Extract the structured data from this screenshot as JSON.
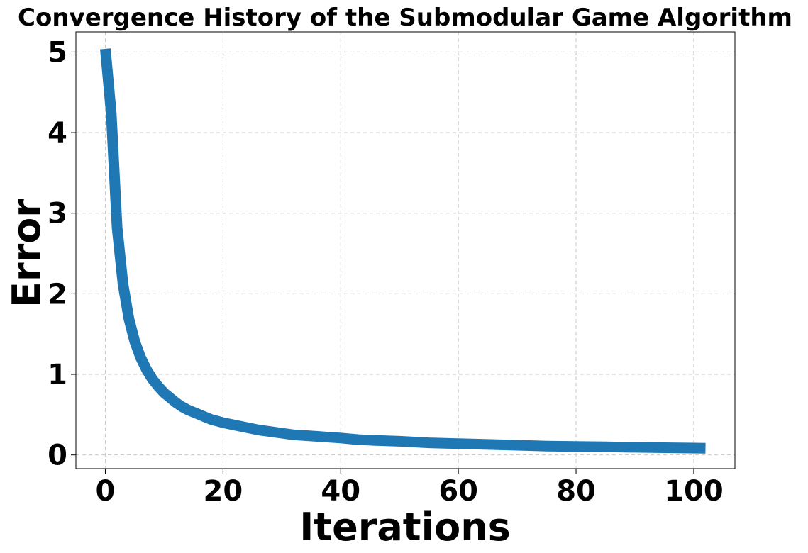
{
  "chart_data": {
    "type": "line",
    "title": "Convergence History of the Submodular Game Algorithm",
    "xlabel": "Iterations",
    "ylabel": "Error",
    "xlim": [
      -5,
      107
    ],
    "ylim": [
      -0.17,
      5.25
    ],
    "xticks": [
      0,
      20,
      40,
      60,
      80,
      100
    ],
    "xtick_labels": [
      "0",
      "20",
      "40",
      "60",
      "80",
      "100"
    ],
    "yticks": [
      0,
      1,
      2,
      3,
      4,
      5
    ],
    "ytick_labels": [
      "0",
      "1",
      "2",
      "3",
      "4",
      "5"
    ],
    "grid": true,
    "series": [
      {
        "color": "#1f77b4",
        "x": [
          0,
          1,
          2,
          3,
          4,
          5,
          6,
          7,
          8,
          9,
          10,
          11,
          12,
          13,
          14,
          15,
          16,
          17,
          18,
          19,
          20,
          22,
          24,
          26,
          28,
          30,
          32,
          34,
          36,
          38,
          40,
          43,
          46,
          50,
          55,
          60,
          65,
          70,
          75,
          80,
          85,
          90,
          95,
          100,
          102
        ],
        "y": [
          5.04,
          4.24,
          2.82,
          2.12,
          1.69,
          1.41,
          1.21,
          1.06,
          0.94,
          0.85,
          0.77,
          0.71,
          0.65,
          0.6,
          0.56,
          0.53,
          0.5,
          0.47,
          0.44,
          0.42,
          0.4,
          0.37,
          0.34,
          0.31,
          0.29,
          0.27,
          0.25,
          0.24,
          0.23,
          0.22,
          0.21,
          0.19,
          0.18,
          0.17,
          0.15,
          0.14,
          0.13,
          0.12,
          0.11,
          0.105,
          0.1,
          0.095,
          0.09,
          0.085,
          0.083
        ]
      }
    ]
  }
}
